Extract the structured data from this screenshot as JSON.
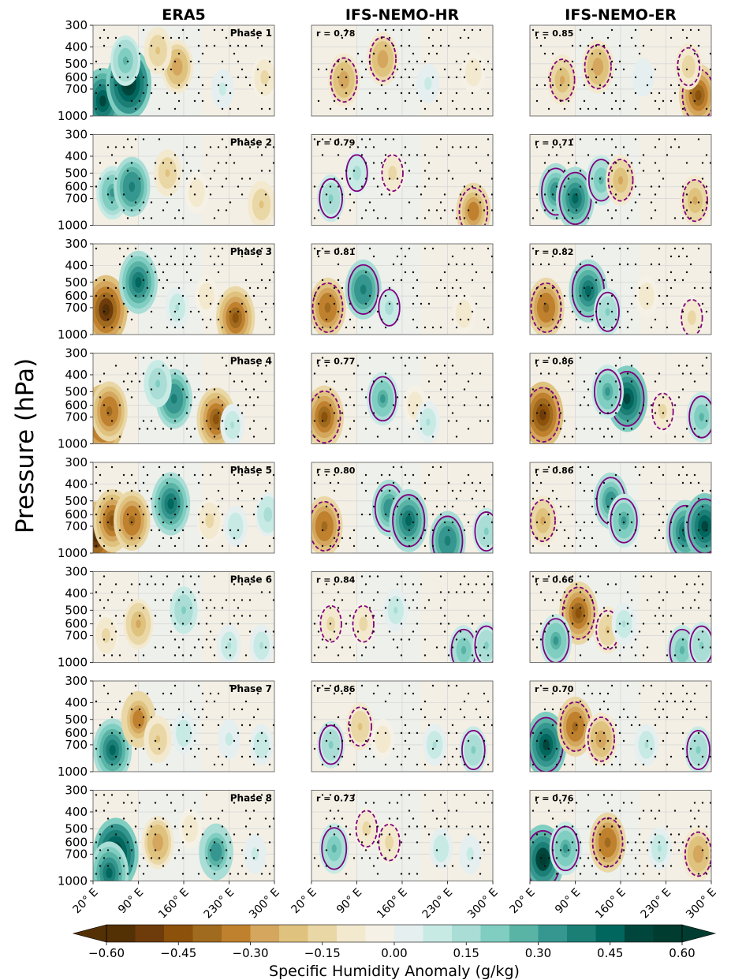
{
  "chart_data": {
    "type": "heatmap",
    "ylabel": "Pressure (hPa)",
    "xlabel": "",
    "columns": [
      "ERA5",
      "IFS-NEMO-HR",
      "IFS-NEMO-ER"
    ],
    "phases": [
      "Phase 1",
      "Phase 2",
      "Phase 3",
      "Phase 4",
      "Phase 5",
      "Phase 6",
      "Phase 7",
      "Phase 8"
    ],
    "x_ticks": [
      "20° E",
      "90° E",
      "160° E",
      "230° E",
      "300° E"
    ],
    "x_tick_values": [
      20,
      90,
      160,
      230,
      300
    ],
    "xlim": [
      20,
      300
    ],
    "y_ticks": [
      "300",
      "400",
      "500",
      "600",
      "700",
      "1000"
    ],
    "y_tick_values": [
      300,
      400,
      500,
      600,
      700,
      1000
    ],
    "ylim": [
      1000,
      300
    ],
    "correlations": {
      "IFS-NEMO-HR": [
        "r = 0.78",
        "r = 0.79",
        "r = 0.81",
        "r = 0.77",
        "r = 0.80",
        "r = 0.84",
        "r = 0.86",
        "r = 0.73"
      ],
      "IFS-NEMO-ER": [
        "r = 0.85",
        "r = 0.71",
        "r = 0.82",
        "r = 0.86",
        "r = 0.86",
        "r = 0.66",
        "r = 0.70",
        "r = 0.76"
      ]
    },
    "anomalies": [
      [
        [
          [
            35,
            820,
            0.5
          ],
          [
            75,
            650,
            0.6
          ],
          [
            70,
            480,
            0.25
          ],
          [
            150,
            520,
            -0.3
          ],
          [
            120,
            420,
            -0.2
          ],
          [
            220,
            700,
            0.08
          ],
          [
            285,
            600,
            -0.15
          ]
        ],
        [
          [
            70,
            620,
            -0.3
          ],
          [
            130,
            470,
            -0.3
          ],
          [
            200,
            650,
            0.08
          ],
          [
            270,
            560,
            -0.12
          ]
        ],
        [
          [
            70,
            620,
            -0.25
          ],
          [
            125,
            520,
            -0.3
          ],
          [
            195,
            600,
            0.06
          ],
          [
            280,
            760,
            -0.45
          ],
          [
            265,
            520,
            -0.18
          ]
        ]
      ],
      [
        [
          [
            50,
            650,
            0.3
          ],
          [
            80,
            600,
            0.4
          ],
          [
            135,
            500,
            -0.2
          ],
          [
            180,
            650,
            -0.12
          ],
          [
            280,
            760,
            -0.2
          ]
        ],
        [
          [
            50,
            700,
            0.2
          ],
          [
            90,
            500,
            0.15
          ],
          [
            145,
            500,
            -0.15
          ],
          [
            270,
            830,
            -0.35
          ]
        ],
        [
          [
            60,
            640,
            0.35
          ],
          [
            90,
            700,
            0.45
          ],
          [
            130,
            550,
            0.25
          ],
          [
            160,
            550,
            -0.25
          ],
          [
            275,
            720,
            -0.25
          ]
        ]
      ],
      [
        [
          [
            40,
            720,
            -0.55
          ],
          [
            90,
            500,
            0.45
          ],
          [
            150,
            700,
            0.12
          ],
          [
            195,
            600,
            -0.1
          ],
          [
            240,
            800,
            -0.45
          ]
        ],
        [
          [
            45,
            700,
            -0.4
          ],
          [
            100,
            550,
            0.4
          ],
          [
            140,
            700,
            0.15
          ],
          [
            255,
            760,
            -0.12
          ]
        ],
        [
          [
            45,
            700,
            -0.4
          ],
          [
            110,
            560,
            0.45
          ],
          [
            140,
            740,
            0.2
          ],
          [
            200,
            600,
            -0.1
          ],
          [
            270,
            800,
            -0.15
          ]
        ]
      ],
      [
        [
          [
            35,
            720,
            -0.55
          ],
          [
            45,
            650,
            -0.4
          ],
          [
            145,
            550,
            0.4
          ],
          [
            120,
            450,
            0.2
          ],
          [
            210,
            720,
            -0.45
          ],
          [
            235,
            780,
            0.12
          ]
        ],
        [
          [
            40,
            700,
            -0.45
          ],
          [
            130,
            550,
            0.3
          ],
          [
            180,
            600,
            -0.1
          ],
          [
            200,
            750,
            0.12
          ]
        ],
        [
          [
            40,
            680,
            -0.5
          ],
          [
            170,
            550,
            0.5
          ],
          [
            140,
            500,
            0.3
          ],
          [
            225,
            650,
            -0.15
          ],
          [
            285,
            700,
            0.25
          ]
        ]
      ],
      [
        [
          [
            25,
            800,
            -0.55
          ],
          [
            50,
            650,
            -0.45
          ],
          [
            80,
            650,
            -0.4
          ],
          [
            140,
            520,
            0.45
          ],
          [
            200,
            650,
            -0.15
          ],
          [
            240,
            700,
            0.1
          ],
          [
            290,
            600,
            0.15
          ]
        ],
        [
          [
            40,
            700,
            -0.4
          ],
          [
            140,
            550,
            0.35
          ],
          [
            170,
            650,
            0.45
          ],
          [
            230,
            850,
            0.4
          ],
          [
            290,
            750,
            0.2
          ]
        ],
        [
          [
            40,
            650,
            -0.25
          ],
          [
            145,
            500,
            0.35
          ],
          [
            165,
            650,
            0.3
          ],
          [
            260,
            750,
            0.45
          ],
          [
            290,
            700,
            0.5
          ]
        ]
      ],
      [
        [
          [
            40,
            700,
            -0.15
          ],
          [
            90,
            600,
            -0.25
          ],
          [
            160,
            500,
            0.2
          ],
          [
            230,
            800,
            0.12
          ],
          [
            280,
            800,
            0.12
          ]
        ],
        [
          [
            50,
            600,
            -0.15
          ],
          [
            100,
            600,
            -0.15
          ],
          [
            150,
            500,
            0.12
          ],
          [
            255,
            850,
            0.25
          ],
          [
            290,
            800,
            0.2
          ]
        ],
        [
          [
            95,
            520,
            -0.45
          ],
          [
            60,
            750,
            0.3
          ],
          [
            140,
            650,
            -0.2
          ],
          [
            165,
            600,
            0.12
          ],
          [
            255,
            850,
            0.25
          ],
          [
            285,
            800,
            0.2
          ]
        ]
      ],
      [
        [
          [
            50,
            750,
            0.45
          ],
          [
            90,
            500,
            -0.35
          ],
          [
            120,
            650,
            -0.2
          ],
          [
            160,
            600,
            0.1
          ],
          [
            230,
            650,
            0.08
          ],
          [
            280,
            700,
            0.1
          ]
        ],
        [
          [
            50,
            700,
            0.2
          ],
          [
            95,
            550,
            -0.2
          ],
          [
            130,
            650,
            -0.1
          ],
          [
            210,
            700,
            0.12
          ],
          [
            270,
            750,
            0.2
          ]
        ],
        [
          [
            45,
            700,
            0.5
          ],
          [
            90,
            550,
            -0.4
          ],
          [
            130,
            650,
            -0.3
          ],
          [
            200,
            700,
            0.12
          ],
          [
            280,
            750,
            0.2
          ]
        ]
      ],
      [
        [
          [
            55,
            700,
            0.6
          ],
          [
            45,
            900,
            0.45
          ],
          [
            120,
            600,
            -0.3
          ],
          [
            210,
            680,
            0.35
          ],
          [
            170,
            500,
            -0.1
          ],
          [
            270,
            700,
            0.08
          ]
        ],
        [
          [
            55,
            650,
            0.25
          ],
          [
            105,
            500,
            -0.15
          ],
          [
            140,
            600,
            -0.15
          ],
          [
            220,
            650,
            0.1
          ],
          [
            265,
            700,
            0.08
          ]
        ],
        [
          [
            40,
            750,
            0.55
          ],
          [
            75,
            650,
            0.3
          ],
          [
            140,
            600,
            -0.4
          ],
          [
            220,
            650,
            0.12
          ],
          [
            280,
            700,
            -0.3
          ]
        ]
      ]
    ],
    "contour_solid_level": 0.15,
    "contour_dashed_level": -0.15,
    "colorbar": {
      "label": "Specific Humidity Anomaly (g/kg)",
      "tick_labels": [
        "−0.60",
        "−0.45",
        "−0.30",
        "−0.15",
        "0.00",
        "0.15",
        "0.30",
        "0.45",
        "0.60"
      ],
      "tick_values": [
        -0.6,
        -0.45,
        -0.3,
        -0.15,
        0.0,
        0.15,
        0.3,
        0.45,
        0.6
      ],
      "min": -0.6,
      "max": 0.6,
      "colors": [
        "#543005",
        "#6e3b0a",
        "#8c510a",
        "#a06a1f",
        "#bf812d",
        "#d4a65e",
        "#dfc27d",
        "#ead7a6",
        "#f3e9cf",
        "#f5f1e6",
        "#e6efef",
        "#c7eae5",
        "#a9ddd5",
        "#80cdc1",
        "#5ab4a6",
        "#35978f",
        "#1b7f76",
        "#01665e",
        "#00463d",
        "#003c30"
      ],
      "extend": "both"
    }
  }
}
